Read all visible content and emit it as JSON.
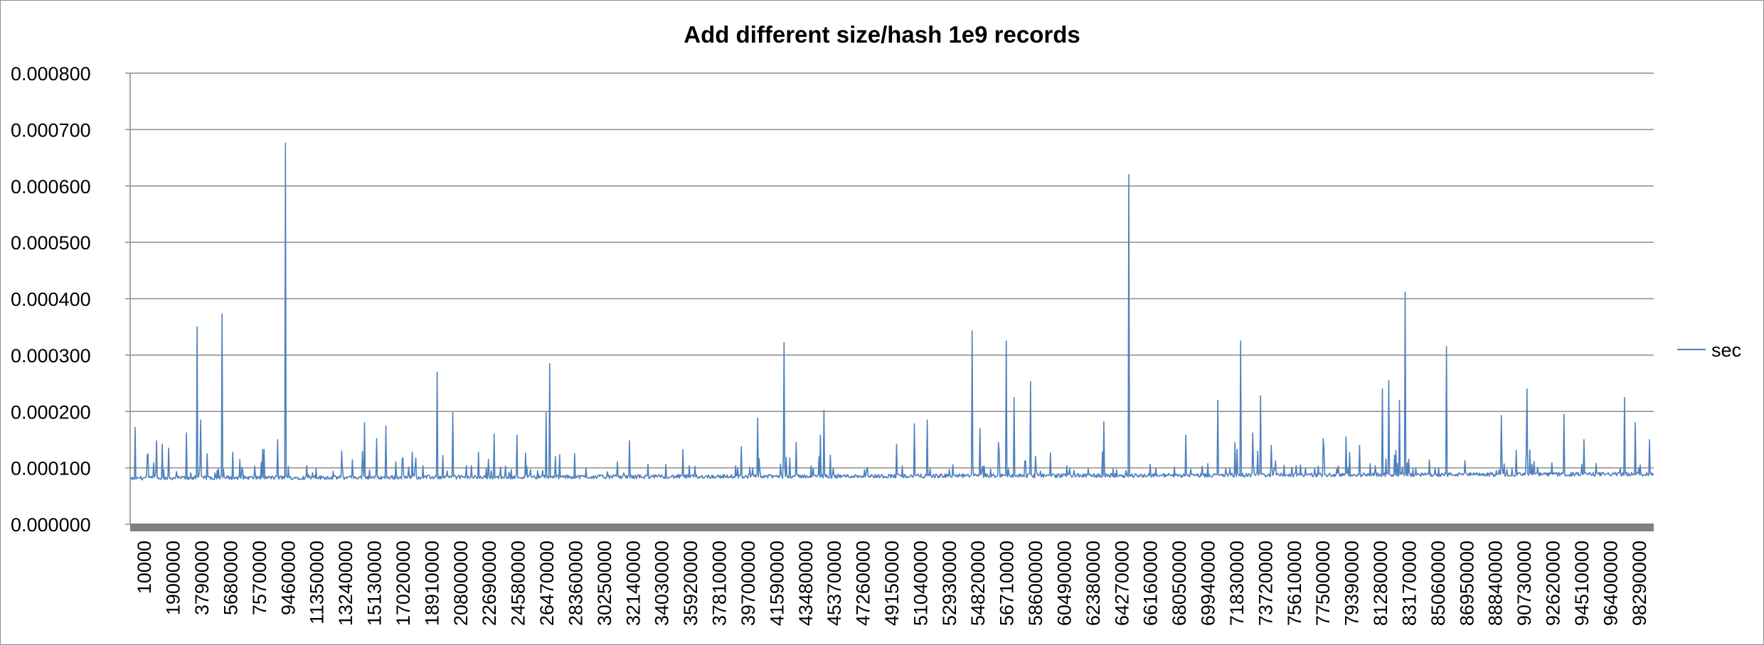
{
  "chart_data": {
    "type": "line",
    "title": "Add different size/hash 1e9 records",
    "xlabel": "",
    "ylabel": "",
    "ylim": [
      0,
      0.0008
    ],
    "y_ticks": [
      "0.000000",
      "0.000100",
      "0.000200",
      "0.000300",
      "0.000400",
      "0.000500",
      "0.000600",
      "0.000700",
      "0.000800"
    ],
    "x_tick_labels": [
      "10000",
      "1900000",
      "3790000",
      "5680000",
      "7570000",
      "9460000",
      "11350000",
      "13240000",
      "15130000",
      "17020000",
      "18910000",
      "20800000",
      "22690000",
      "24580000",
      "26470000",
      "28360000",
      "30250000",
      "32140000",
      "34030000",
      "35920000",
      "37810000",
      "39700000",
      "41590000",
      "43480000",
      "45370000",
      "47260000",
      "49150000",
      "51040000",
      "52930000",
      "54820000",
      "56710000",
      "58600000",
      "60490000",
      "62380000",
      "64270000",
      "66160000",
      "68050000",
      "69940000",
      "71830000",
      "73720000",
      "75610000",
      "77500000",
      "79390000",
      "81280000",
      "83170000",
      "85060000",
      "86950000",
      "88840000",
      "90730000",
      "92620000",
      "94510000",
      "96400000",
      "98290000"
    ],
    "xlim": [
      10000,
      100000000
    ],
    "grid": true,
    "legend_position": "right",
    "series": [
      {
        "name": "sec",
        "color": "#4f81bd",
        "baseline": 8.5e-05,
        "peaks": [
          {
            "x": 350000,
            "y": 0.000172
          },
          {
            "x": 1200000,
            "y": 0.000125
          },
          {
            "x": 1750000,
            "y": 0.000148
          },
          {
            "x": 2100000,
            "y": 0.000142
          },
          {
            "x": 2550000,
            "y": 0.000135
          },
          {
            "x": 3700000,
            "y": 0.000162
          },
          {
            "x": 4400000,
            "y": 0.00035
          },
          {
            "x": 4650000,
            "y": 0.000185
          },
          {
            "x": 5050000,
            "y": 0.000125
          },
          {
            "x": 6050000,
            "y": 0.000373
          },
          {
            "x": 6750000,
            "y": 0.000128
          },
          {
            "x": 8700000,
            "y": 0.000133
          },
          {
            "x": 9700000,
            "y": 0.00015
          },
          {
            "x": 10200000,
            "y": 0.000676
          },
          {
            "x": 13900000,
            "y": 0.00013
          },
          {
            "x": 15400000,
            "y": 0.00018
          },
          {
            "x": 16200000,
            "y": 0.000152
          },
          {
            "x": 16800000,
            "y": 0.000174
          },
          {
            "x": 18500000,
            "y": 0.000128
          },
          {
            "x": 20150000,
            "y": 0.00027
          },
          {
            "x": 21200000,
            "y": 0.000198
          },
          {
            "x": 23900000,
            "y": 0.00016
          },
          {
            "x": 25400000,
            "y": 0.000158
          },
          {
            "x": 27300000,
            "y": 0.000198
          },
          {
            "x": 27550000,
            "y": 0.000285
          },
          {
            "x": 29200000,
            "y": 0.000125
          },
          {
            "x": 32800000,
            "y": 0.000148
          },
          {
            "x": 36300000,
            "y": 0.000132
          },
          {
            "x": 40100000,
            "y": 0.000138
          },
          {
            "x": 41200000,
            "y": 0.000188
          },
          {
            "x": 42900000,
            "y": 0.000322
          },
          {
            "x": 43700000,
            "y": 0.000145
          },
          {
            "x": 45300000,
            "y": 0.000158
          },
          {
            "x": 45550000,
            "y": 0.000202
          },
          {
            "x": 50300000,
            "y": 0.000142
          },
          {
            "x": 51500000,
            "y": 0.000178
          },
          {
            "x": 52300000,
            "y": 0.000185
          },
          {
            "x": 55250000,
            "y": 0.000343
          },
          {
            "x": 55800000,
            "y": 0.00017
          },
          {
            "x": 57000000,
            "y": 0.000145
          },
          {
            "x": 57500000,
            "y": 0.000325
          },
          {
            "x": 58000000,
            "y": 0.000225
          },
          {
            "x": 59100000,
            "y": 0.000253
          },
          {
            "x": 63900000,
            "y": 0.000182
          },
          {
            "x": 65550000,
            "y": 0.00062
          },
          {
            "x": 69300000,
            "y": 0.000158
          },
          {
            "x": 71400000,
            "y": 0.00022
          },
          {
            "x": 72500000,
            "y": 0.000145
          },
          {
            "x": 72900000,
            "y": 0.000325
          },
          {
            "x": 73700000,
            "y": 0.000162
          },
          {
            "x": 74200000,
            "y": 0.000228
          },
          {
            "x": 74900000,
            "y": 0.00014
          },
          {
            "x": 78300000,
            "y": 0.000152
          },
          {
            "x": 79800000,
            "y": 0.000155
          },
          {
            "x": 80700000,
            "y": 0.00014
          },
          {
            "x": 82200000,
            "y": 0.00024
          },
          {
            "x": 82600000,
            "y": 0.000255
          },
          {
            "x": 83300000,
            "y": 0.00022
          },
          {
            "x": 83700000,
            "y": 0.000412
          },
          {
            "x": 86400000,
            "y": 0.000315
          },
          {
            "x": 90000000,
            "y": 0.000193
          },
          {
            "x": 91700000,
            "y": 0.00024
          },
          {
            "x": 94100000,
            "y": 0.000195
          },
          {
            "x": 95400000,
            "y": 0.00015
          },
          {
            "x": 98100000,
            "y": 0.000225
          },
          {
            "x": 98800000,
            "y": 0.00018
          },
          {
            "x": 99700000,
            "y": 0.00015
          }
        ]
      }
    ]
  }
}
